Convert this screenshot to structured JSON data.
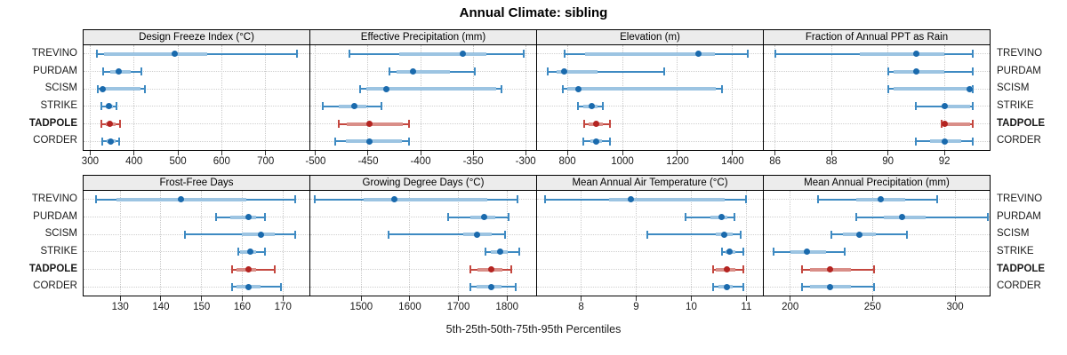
{
  "title": "Annual Climate: sibling",
  "caption": "5th-25th-50th-75th-95th Percentiles",
  "sites": [
    "TREVINO",
    "PURDAM",
    "SCISM",
    "STRIKE",
    "TADPOLE",
    "CORDER"
  ],
  "highlight_site": "TADPOLE",
  "colors": {
    "blue_dot": "#1a6aad",
    "blue_line": "#3e8ac2",
    "blue_bar": "#9cc4e2",
    "red_dot": "#b42421",
    "red_line": "#c4473f",
    "red_bar": "#d98e88",
    "strip_bg": "#ececec",
    "grid": "#c9c9c9",
    "border": "#000000"
  },
  "chart_data": [
    {
      "type": "dotplot-percentiles",
      "row": 1,
      "col": 1,
      "header": "Design Freeze Index (°C)",
      "xlim": [
        285,
        800
      ],
      "ticks": [
        300,
        400,
        500,
        600,
        700
      ],
      "tick_labels": [
        "300",
        "400",
        "500",
        "600",
        "700"
      ],
      "percentile_levels": [
        "5th",
        "25th",
        "50th",
        "75th",
        "95th"
      ],
      "series": [
        {
          "site": "TREVINO",
          "values": [
            315,
            332,
            492,
            567,
            771
          ]
        },
        {
          "site": "PURDAM",
          "values": [
            330,
            345,
            365,
            392,
            416
          ]
        },
        {
          "site": "SCISM",
          "values": [
            318,
            324,
            328,
            415,
            424
          ]
        },
        {
          "site": "STRIKE",
          "values": [
            326,
            335,
            343,
            351,
            360
          ]
        },
        {
          "site": "TADPOLE",
          "values": [
            326,
            335,
            345,
            358,
            369
          ]
        },
        {
          "site": "CORDER",
          "values": [
            328,
            337,
            346,
            357,
            367
          ]
        }
      ]
    },
    {
      "type": "dotplot-percentiles",
      "row": 1,
      "col": 2,
      "header": "Effective Precipitation (mm)",
      "xlim": [
        -505,
        -290
      ],
      "ticks": [
        -500,
        -450,
        -400,
        -350,
        -300
      ],
      "tick_labels": [
        "-500",
        "-450",
        "-400",
        "-350",
        "-300"
      ],
      "series": [
        {
          "site": "TREVINO",
          "values": [
            -468,
            -420,
            -360,
            -337,
            -302
          ]
        },
        {
          "site": "PURDAM",
          "values": [
            -430,
            -423,
            -407,
            -372,
            -348
          ]
        },
        {
          "site": "SCISM",
          "values": [
            -458,
            -452,
            -433,
            -328,
            -323
          ]
        },
        {
          "site": "STRIKE",
          "values": [
            -493,
            -478,
            -463,
            -452,
            -437
          ]
        },
        {
          "site": "TADPOLE",
          "values": [
            -478,
            -470,
            -449,
            -417,
            -411
          ]
        },
        {
          "site": "CORDER",
          "values": [
            -481,
            -471,
            -449,
            -418,
            -411
          ]
        }
      ]
    },
    {
      "type": "dotplot-percentiles",
      "row": 1,
      "col": 3,
      "header": "Elevation (m)",
      "xlim": [
        690,
        1510
      ],
      "ticks": [
        800,
        1000,
        1200,
        1400
      ],
      "tick_labels": [
        "800",
        "1000",
        "1200",
        "1400"
      ],
      "series": [
        {
          "site": "TREVINO",
          "values": [
            790,
            865,
            1275,
            1335,
            1455
          ]
        },
        {
          "site": "PURDAM",
          "values": [
            730,
            762,
            790,
            910,
            1152
          ]
        },
        {
          "site": "SCISM",
          "values": [
            785,
            800,
            840,
            1340,
            1360
          ]
        },
        {
          "site": "STRIKE",
          "values": [
            838,
            858,
            888,
            908,
            928
          ]
        },
        {
          "site": "TADPOLE",
          "values": [
            862,
            878,
            905,
            930,
            955
          ]
        },
        {
          "site": "CORDER",
          "values": [
            858,
            885,
            905,
            925,
            955
          ]
        }
      ]
    },
    {
      "type": "dotplot-percentiles",
      "row": 1,
      "col": 4,
      "header": "Fraction of Annual PPT as Rain",
      "xlim": [
        85.6,
        93.6
      ],
      "ticks": [
        86,
        88,
        90,
        92
      ],
      "tick_labels": [
        "86",
        "88",
        "90",
        "92"
      ],
      "series": [
        {
          "site": "TREVINO",
          "values": [
            86,
            89,
            91,
            92,
            93
          ]
        },
        {
          "site": "PURDAM",
          "values": [
            90,
            90.2,
            91,
            92,
            93
          ]
        },
        {
          "site": "SCISM",
          "values": [
            90,
            90.2,
            92.9,
            93,
            93
          ]
        },
        {
          "site": "STRIKE",
          "values": [
            91,
            91.9,
            92,
            92.9,
            93
          ]
        },
        {
          "site": "TADPOLE",
          "values": [
            91.9,
            92,
            92,
            92.9,
            93
          ]
        },
        {
          "site": "CORDER",
          "values": [
            91,
            91.5,
            92,
            92.6,
            93
          ]
        }
      ]
    },
    {
      "type": "dotplot-percentiles",
      "row": 2,
      "col": 1,
      "header": "Frost-Free Days",
      "xlim": [
        121,
        176.5
      ],
      "ticks": [
        130,
        140,
        150,
        160,
        170
      ],
      "tick_labels": [
        "130",
        "140",
        "150",
        "160",
        "170"
      ],
      "series": [
        {
          "site": "TREVINO",
          "values": [
            124,
            129,
            145,
            161,
            173
          ]
        },
        {
          "site": "PURDAM",
          "values": [
            153.5,
            157,
            161.5,
            163.5,
            165.5
          ]
        },
        {
          "site": "SCISM",
          "values": [
            146,
            160,
            164.5,
            168,
            173
          ]
        },
        {
          "site": "STRIKE",
          "values": [
            159,
            159.5,
            162,
            163.5,
            165.5
          ]
        },
        {
          "site": "TADPOLE",
          "values": [
            157.5,
            158.5,
            161.5,
            163.5,
            168
          ]
        },
        {
          "site": "CORDER",
          "values": [
            157.5,
            158.5,
            161.5,
            164.5,
            169.5
          ]
        }
      ]
    },
    {
      "type": "dotplot-percentiles",
      "row": 2,
      "col": 2,
      "header": "Growing Degree Days (°C)",
      "xlim": [
        1395,
        1860
      ],
      "ticks": [
        1500,
        1600,
        1700,
        1800
      ],
      "tick_labels": [
        "1500",
        "1600",
        "1700",
        "1800"
      ],
      "series": [
        {
          "site": "TREVINO",
          "values": [
            1404,
            1505,
            1568,
            1760,
            1822
          ]
        },
        {
          "site": "PURDAM",
          "values": [
            1678,
            1725,
            1752,
            1775,
            1803
          ]
        },
        {
          "site": "SCISM",
          "values": [
            1556,
            1710,
            1738,
            1768,
            1796
          ]
        },
        {
          "site": "STRIKE",
          "values": [
            1755,
            1766,
            1786,
            1802,
            1826
          ]
        },
        {
          "site": "TADPOLE",
          "values": [
            1724,
            1740,
            1768,
            1790,
            1808
          ]
        },
        {
          "site": "CORDER",
          "values": [
            1724,
            1738,
            1768,
            1788,
            1818
          ]
        }
      ]
    },
    {
      "type": "dotplot-percentiles",
      "row": 2,
      "col": 3,
      "header": "Mean Annual Air Temperature (°C)",
      "xlim": [
        7.2,
        11.3
      ],
      "ticks": [
        8,
        9,
        10,
        11
      ],
      "tick_labels": [
        "8",
        "9",
        "10",
        "11"
      ],
      "series": [
        {
          "site": "TREVINO",
          "values": [
            7.35,
            8.5,
            8.9,
            10.6,
            11.0
          ]
        },
        {
          "site": "PURDAM",
          "values": [
            9.9,
            10.35,
            10.55,
            10.65,
            10.78
          ]
        },
        {
          "site": "SCISM",
          "values": [
            9.2,
            10.45,
            10.6,
            10.75,
            10.9
          ]
        },
        {
          "site": "STRIKE",
          "values": [
            10.55,
            10.62,
            10.7,
            10.8,
            10.95
          ]
        },
        {
          "site": "TADPOLE",
          "values": [
            10.4,
            10.45,
            10.65,
            10.8,
            10.95
          ]
        },
        {
          "site": "CORDER",
          "values": [
            10.4,
            10.5,
            10.65,
            10.75,
            10.95
          ]
        }
      ]
    },
    {
      "type": "dotplot-percentiles",
      "row": 2,
      "col": 4,
      "header": "Mean Annual Precipitation (mm)",
      "xlim": [
        184,
        321
      ],
      "ticks": [
        200,
        250,
        300
      ],
      "tick_labels": [
        "200",
        "250",
        "300"
      ],
      "series": [
        {
          "site": "TREVINO",
          "values": [
            217,
            240,
            255,
            270,
            289
          ]
        },
        {
          "site": "PURDAM",
          "values": [
            240,
            257,
            268,
            282,
            320
          ]
        },
        {
          "site": "SCISM",
          "values": [
            225,
            232,
            242,
            252,
            271
          ]
        },
        {
          "site": "STRIKE",
          "values": [
            190,
            200,
            210,
            222,
            233
          ]
        },
        {
          "site": "TADPOLE",
          "values": [
            207,
            212,
            224,
            237,
            251
          ]
        },
        {
          "site": "CORDER",
          "values": [
            207,
            212,
            224,
            237,
            251
          ]
        }
      ]
    }
  ]
}
